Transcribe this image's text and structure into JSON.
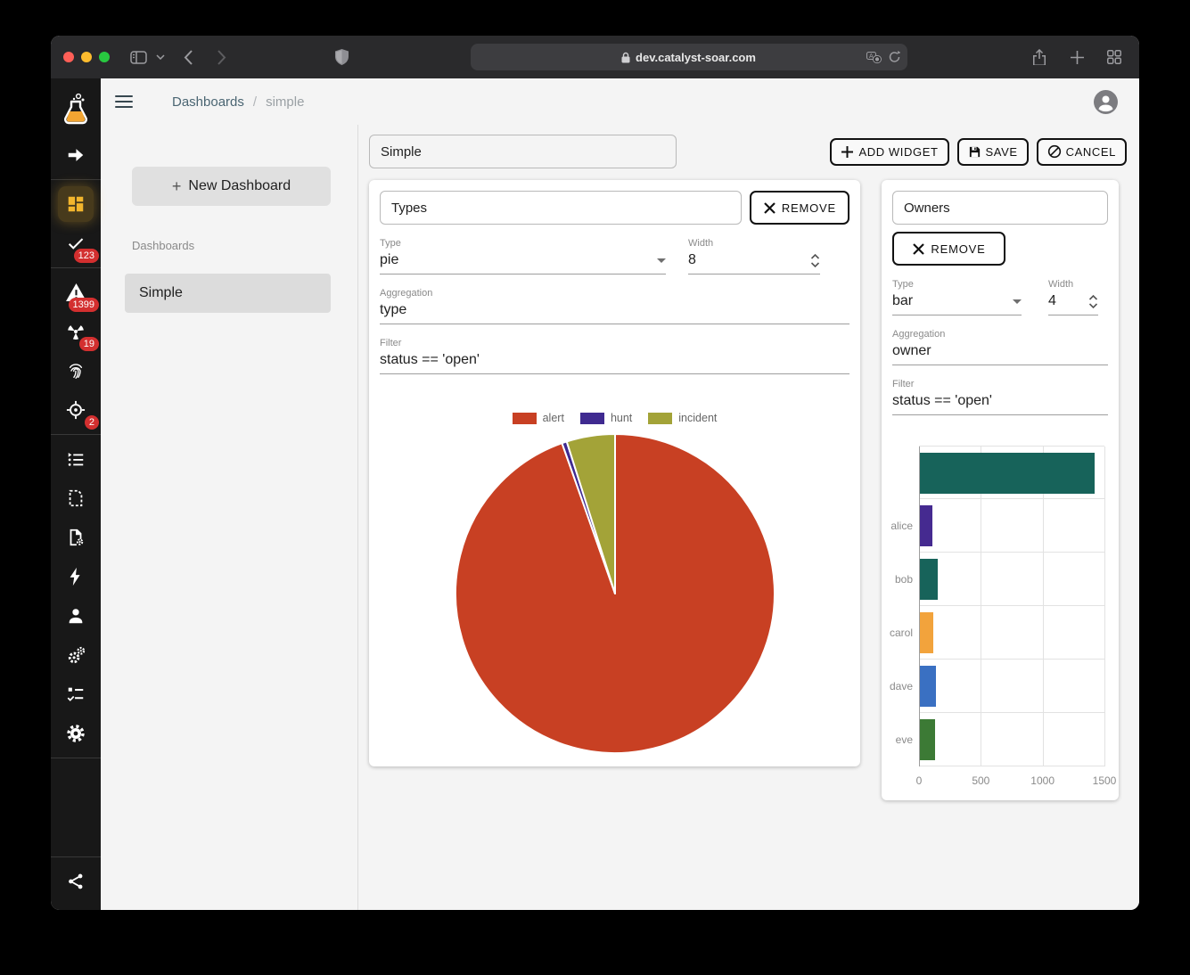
{
  "browser": {
    "url": "dev.catalyst-soar.com"
  },
  "breadcrumb": {
    "root": "Dashboards",
    "separator": "/",
    "current": "simple"
  },
  "sidebar": {
    "badge_check": "123",
    "badge_warning": "1399",
    "badge_radiation": "19",
    "badge_crosshair": "2"
  },
  "nav": {
    "new_dashboard_label": "New Dashboard",
    "new_dashboard_plus": "+",
    "section_label": "Dashboards",
    "items": [
      {
        "label": "Simple",
        "selected": true
      }
    ]
  },
  "toolbar": {
    "dashboard_name_value": "Simple",
    "add_widget_label": "ADD WIDGET",
    "save_label": "SAVE",
    "cancel_label": "CANCEL"
  },
  "widgets": [
    {
      "name_value": "Types",
      "remove_label": "REMOVE",
      "type_label": "Type",
      "type_value": "pie",
      "width_label": "Width",
      "width_value": "8",
      "aggregation_label": "Aggregation",
      "aggregation_value": "type",
      "filter_label": "Filter",
      "filter_value": "status == 'open'"
    },
    {
      "name_value": "Owners",
      "remove_label": "REMOVE",
      "type_label": "Type",
      "type_value": "bar",
      "width_label": "Width",
      "width_value": "4",
      "aggregation_label": "Aggregation",
      "aggregation_value": "owner",
      "filter_label": "Filter",
      "filter_value": "status == 'open'"
    }
  ],
  "chart_data": [
    {
      "type": "pie",
      "title": "Types",
      "labels": [
        "alert",
        "hunt",
        "incident"
      ],
      "values": [
        94.6,
        0.5,
        4.9
      ],
      "units": "percent",
      "colors": [
        "#c84023",
        "#3f2a90",
        "#a3a338"
      ],
      "legend_position": "top",
      "start_angle_deg": -90,
      "direction": "clockwise"
    },
    {
      "type": "bar",
      "title": "Owners",
      "orientation": "horizontal",
      "categories": [
        "",
        "alice",
        "bob",
        "carol",
        "dave",
        "eve"
      ],
      "values": [
        1410,
        100,
        145,
        110,
        130,
        120
      ],
      "colors": [
        "#17635a",
        "#452a90",
        "#17635a",
        "#f2a33c",
        "#3a70c2",
        "#3c7a35"
      ],
      "xlim": [
        0,
        1500
      ],
      "xticks": [
        0,
        500,
        1000,
        1500
      ],
      "grid": true
    }
  ],
  "colors": {
    "accent_yellow": "#f2b52d",
    "badge_red": "#d32f2f",
    "sidebar_bg": "#181818"
  }
}
